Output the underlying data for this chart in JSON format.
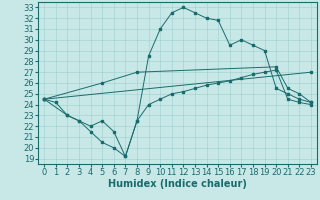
{
  "xlabel": "Humidex (Indice chaleur)",
  "xlim": [
    -0.5,
    23.5
  ],
  "ylim": [
    18.5,
    33.5
  ],
  "xticks": [
    0,
    1,
    2,
    3,
    4,
    5,
    6,
    7,
    8,
    9,
    10,
    11,
    12,
    13,
    14,
    15,
    16,
    17,
    18,
    19,
    20,
    21,
    22,
    23
  ],
  "yticks": [
    19,
    20,
    21,
    22,
    23,
    24,
    25,
    26,
    27,
    28,
    29,
    30,
    31,
    32,
    33
  ],
  "background_color": "#c8e8e8",
  "line_color": "#1a6b6b",
  "lines": [
    {
      "x": [
        0,
        1,
        2,
        3,
        4,
        5,
        6,
        7,
        8,
        9,
        10,
        11,
        12,
        13,
        14,
        15,
        16,
        17,
        18,
        19,
        20,
        21,
        22,
        23
      ],
      "y": [
        24.5,
        24.2,
        23.0,
        22.5,
        21.5,
        20.5,
        20.0,
        19.2,
        22.5,
        28.5,
        31.0,
        32.5,
        33.0,
        32.5,
        32.0,
        31.8,
        29.5,
        30.0,
        29.5,
        29.0,
        25.5,
        25.0,
        24.5,
        24.2
      ]
    },
    {
      "x": [
        0,
        5,
        8,
        20,
        21,
        22,
        23
      ],
      "y": [
        24.5,
        26.0,
        27.0,
        27.5,
        25.5,
        25.0,
        24.2
      ]
    },
    {
      "x": [
        0,
        23
      ],
      "y": [
        24.5,
        27.0
      ]
    },
    {
      "x": [
        0,
        2,
        3,
        4,
        5,
        6,
        7,
        8,
        9,
        10,
        11,
        12,
        13,
        14,
        15,
        16,
        17,
        18,
        19,
        20,
        21,
        22,
        23
      ],
      "y": [
        24.5,
        23.0,
        22.5,
        22.0,
        22.5,
        21.5,
        19.2,
        22.5,
        24.0,
        24.5,
        25.0,
        25.2,
        25.5,
        25.8,
        26.0,
        26.2,
        26.5,
        26.8,
        27.0,
        27.2,
        24.5,
        24.2,
        24.0
      ]
    }
  ],
  "font_size": 7,
  "tick_font_size": 6
}
